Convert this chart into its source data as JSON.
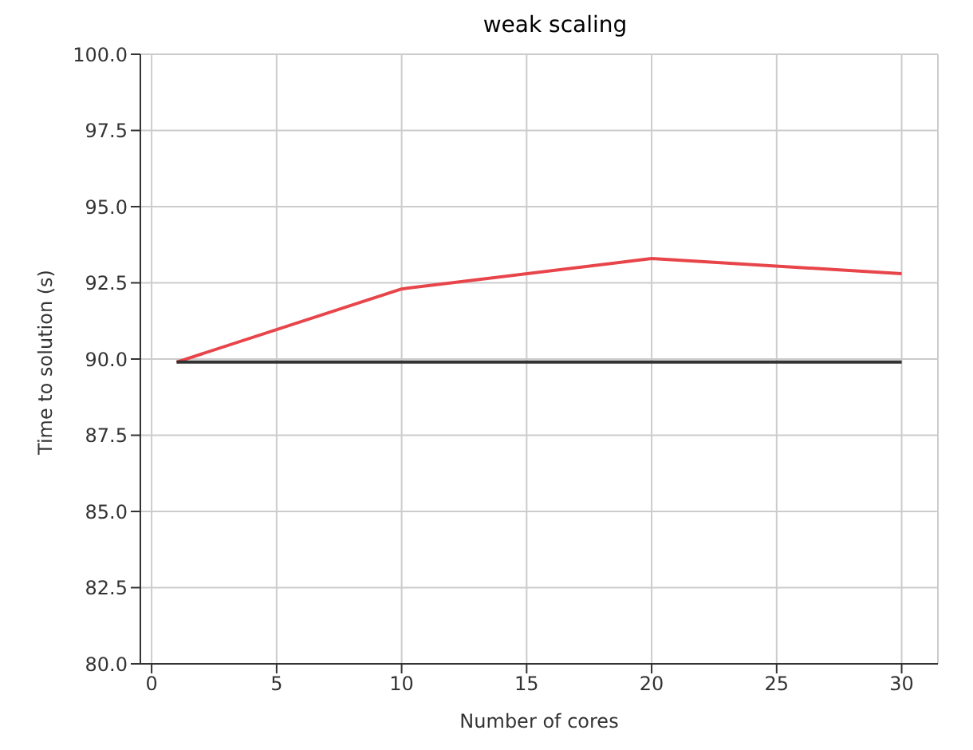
{
  "chart_data": {
    "type": "line",
    "title": "weak scaling",
    "xlabel": "Number of cores",
    "ylabel": "Time to solution (s)",
    "series": [
      {
        "color": "#e8454a",
        "x": [
          1,
          10,
          20,
          30
        ],
        "values": [
          89.9,
          92.3,
          93.3,
          92.8
        ]
      },
      {
        "color": "#333333",
        "x": [
          1,
          30
        ],
        "values": [
          89.9,
          89.9
        ]
      }
    ],
    "xlim": [
      -0.45,
      31.45
    ],
    "xticks": [
      0,
      5,
      10,
      15,
      20,
      25,
      30
    ],
    "ylim": [
      80,
      100
    ],
    "yticks": [
      {
        "value": 80,
        "label": "80.0"
      },
      82.5,
      {
        "value": 85,
        "label": "85.0"
      },
      87.5,
      {
        "value": 90,
        "label": "90.0"
      },
      92.5,
      {
        "value": 95,
        "label": "95.0"
      },
      97.5,
      {
        "value": 100,
        "label": "100.0"
      }
    ],
    "grid": true,
    "marker": "none",
    "line_style": "solid"
  }
}
